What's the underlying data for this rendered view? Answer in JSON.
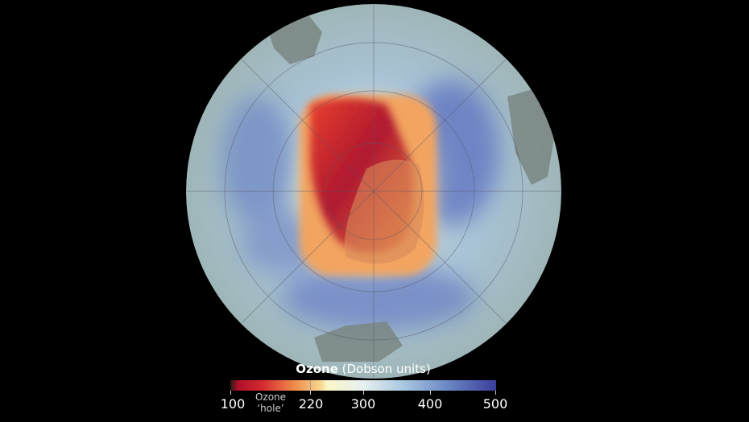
{
  "legend": {
    "title_bold": "Ozone",
    "title_rest": " (Dobson units)",
    "ticks": [
      "100",
      "220",
      "300",
      "400",
      "500"
    ],
    "hole_label_1": "Ozone",
    "hole_label_2": "‘hole’",
    "range": [
      100,
      500
    ],
    "hole_threshold": 220,
    "colors": {
      "low": "#b0102a",
      "mid": "#fbf6c8",
      "high": "#3a3e9a"
    }
  }
}
